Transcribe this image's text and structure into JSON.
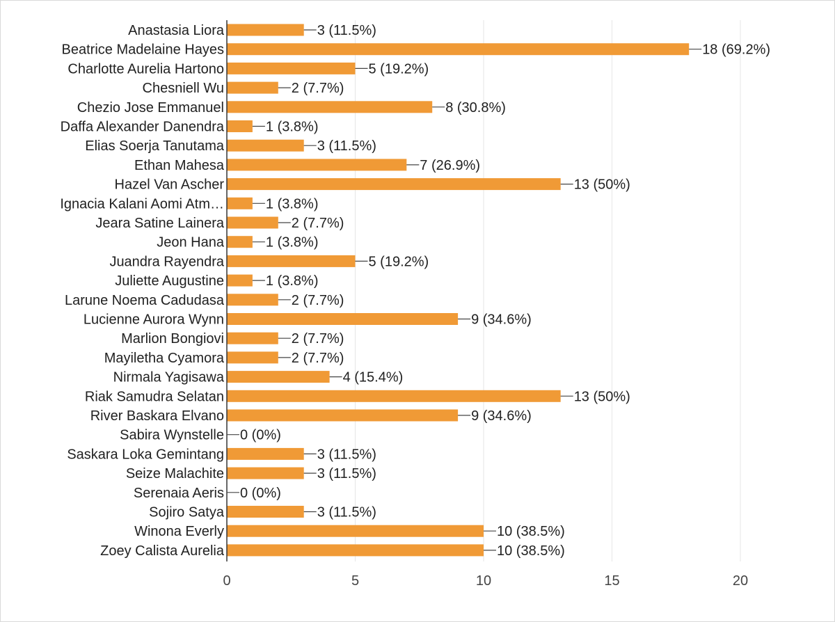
{
  "chart_data": {
    "type": "bar",
    "orientation": "horizontal",
    "categories": [
      "Anastasia Liora",
      "Beatrice Madelaine Hayes",
      "Charlotte Aurelia Hartono",
      "Chesniell Wu",
      "Chezio Jose Emmanuel",
      "Daffa Alexander Danendra",
      "Elias Soerja Tanutama",
      "Ethan Mahesa",
      "Hazel Van Ascher",
      "Ignacia Kalani Aomi Atm…",
      "Jeara Satine Lainera",
      "Jeon Hana",
      "Juandra Rayendra",
      "Juliette Augustine",
      "Larune Noema Cadudasa",
      "Lucienne Aurora Wynn",
      "Marlion Bongiovi",
      "Mayiletha Cyamora",
      "Nirmala Yagisawa",
      "Riak Samudra Selatan",
      "River Baskara Elvano",
      "Sabira Wynstelle",
      "Saskara Loka Gemintang",
      "Seize Malachite",
      "Serenaia Aeris",
      "Sojiro Satya",
      "Winona Everly",
      "Zoey Calista Aurelia"
    ],
    "values": [
      3,
      18,
      5,
      2,
      8,
      1,
      3,
      7,
      13,
      1,
      2,
      1,
      5,
      1,
      2,
      9,
      2,
      2,
      4,
      13,
      9,
      0,
      3,
      3,
      0,
      3,
      10,
      10
    ],
    "data_labels": [
      "3 (11.5%)",
      "18 (69.2%)",
      "5 (19.2%)",
      "2 (7.7%)",
      "8 (30.8%)",
      "1 (3.8%)",
      "3 (11.5%)",
      "7 (26.9%)",
      "13 (50%)",
      "1 (3.8%)",
      "2 (7.7%)",
      "1 (3.8%)",
      "5 (19.2%)",
      "1 (3.8%)",
      "2 (7.7%)",
      "9 (34.6%)",
      "2 (7.7%)",
      "2 (7.7%)",
      "4 (15.4%)",
      "13 (50%)",
      "9 (34.6%)",
      "0 (0%)",
      "3 (11.5%)",
      "3 (11.5%)",
      "0 (0%)",
      "3 (11.5%)",
      "10 (38.5%)",
      "10 (38.5%)"
    ],
    "xlim": [
      0,
      20
    ],
    "x_ticks": [
      "0",
      "5",
      "10",
      "15",
      "20"
    ],
    "grid": true,
    "bar_color": "#F09A36"
  }
}
